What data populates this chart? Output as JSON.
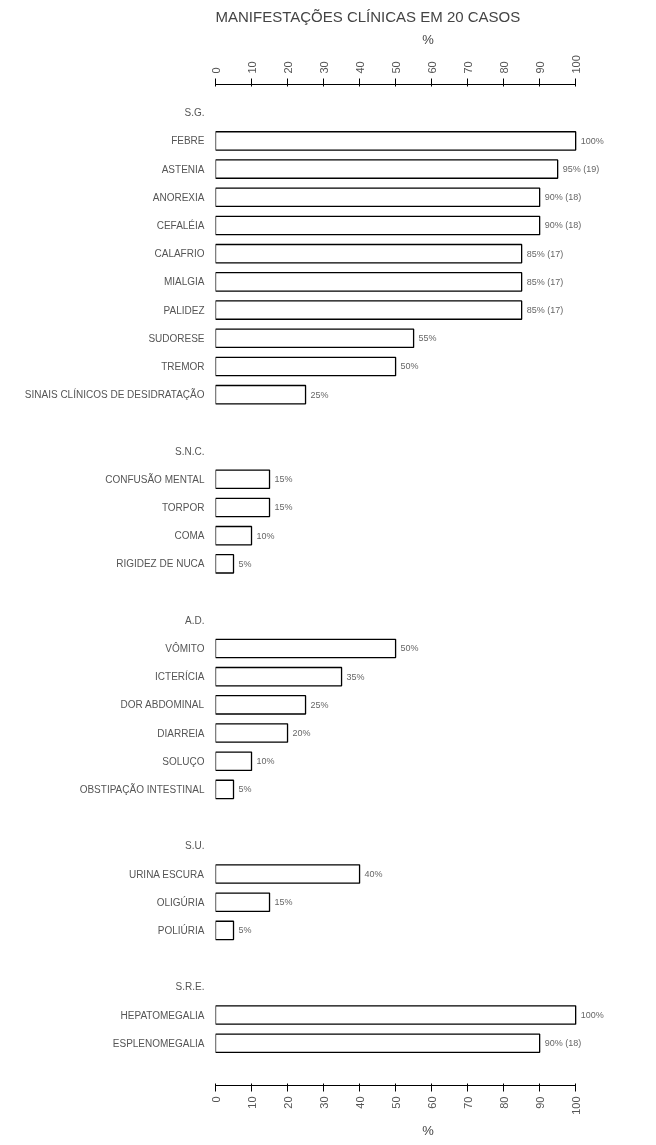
{
  "chart_data": {
    "type": "bar",
    "orientation": "horizontal",
    "title": "MANIFESTAÇÕES CLÍNICAS EM 20 CASOS",
    "xlabel": "%",
    "categories": [
      "S.G.",
      "FEBRE",
      "ASTENIA",
      "ANOREXIA",
      "CEFALÉIA",
      "CALAFRIO",
      "MIALGIA",
      "PALIDEZ",
      "SUDORESE",
      "TREMOR",
      "SINAIS CLÍNICOS DE DESIDRATAÇÃO",
      "S.N.C.",
      "CONFUSÃO MENTAL",
      "TORPOR",
      "COMA",
      "RIGIDEZ DE NUCA",
      "A.D.",
      "VÔMITO",
      "ICTERÍCIA",
      "DOR ABDOMINAL",
      "DIARREIA",
      "SOLUÇO",
      "OBSTIPAÇÃO INTESTINAL",
      "S.U.",
      "URINA ESCURA",
      "OLIGÚRIA",
      "POLIÚRIA",
      "S.R.E.",
      "HEPATOMEGALIA",
      "ESPLENOMEGALIA"
    ],
    "values": [
      null,
      100,
      95,
      90,
      90,
      85,
      85,
      85,
      55,
      50,
      25,
      null,
      15,
      15,
      10,
      5,
      null,
      50,
      35,
      25,
      20,
      10,
      5,
      null,
      40,
      15,
      5,
      null,
      100,
      90
    ],
    "value_labels": [
      null,
      "100%",
      "95% (19)",
      "90% (18)",
      "90% (18)",
      "85% (17)",
      "85% (17)",
      "85% (17)",
      "55%",
      "50%",
      "25%",
      null,
      "15%",
      "15%",
      "10%",
      "5%",
      null,
      "50%",
      "35%",
      "25%",
      "20%",
      "10%",
      "5%",
      null,
      "40%",
      "15%",
      "5%",
      null,
      "100%",
      "90% (18)"
    ],
    "color": "#ffffff",
    "xlim": [
      0,
      100
    ],
    "xticks": [
      0,
      10,
      20,
      30,
      40,
      50,
      60,
      70,
      80,
      90,
      100
    ],
    "x2label": "%",
    "x2lim": [
      0,
      100
    ],
    "x2ticks": [
      0,
      10,
      20,
      30,
      40,
      50,
      60,
      70,
      80,
      90,
      100
    ],
    "grid": false
  }
}
